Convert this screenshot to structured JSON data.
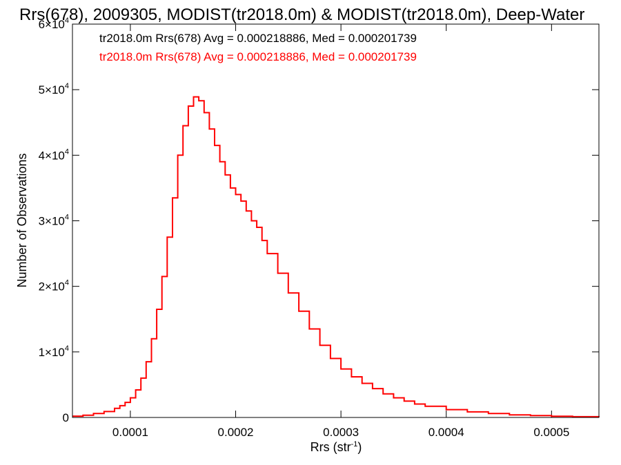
{
  "chart_data": {
    "type": "line",
    "title": "Rrs(678), 2009305, MODIST(tr2018.0m) & MODIST(tr2018.0m), Deep-Water",
    "xlabel": "Rrs (str",
    "xlabel_sup": "-1",
    "xlabel_close": ")",
    "ylabel": "Number of Observations",
    "xlim": [
      4.5e-05,
      0.000545
    ],
    "ylim": [
      0,
      60000
    ],
    "x_ticks": [
      {
        "value": 0.0001,
        "label": "0.0001"
      },
      {
        "value": 0.0002,
        "label": "0.0002"
      },
      {
        "value": 0.0003,
        "label": "0.0003"
      },
      {
        "value": 0.0004,
        "label": "0.0004"
      },
      {
        "value": 0.0005,
        "label": "0.0005"
      }
    ],
    "y_ticks": [
      {
        "value": 0,
        "mant": "0",
        "exp": ""
      },
      {
        "value": 10000,
        "mant": "1×10",
        "exp": "4"
      },
      {
        "value": 20000,
        "mant": "2×10",
        "exp": "4"
      },
      {
        "value": 30000,
        "mant": "3×10",
        "exp": "4"
      },
      {
        "value": 40000,
        "mant": "4×10",
        "exp": "4"
      },
      {
        "value": 50000,
        "mant": "5×10",
        "exp": "4"
      },
      {
        "value": 60000,
        "mant": "6×10",
        "exp": "4"
      }
    ],
    "grid": false,
    "legend_position": "top-left",
    "legend": [
      {
        "text": "tr2018.0m Rrs(678) Avg = 0.000218886, Med = 0.000201739",
        "color": "#000000"
      },
      {
        "text": "tr2018.0m Rrs(678) Avg = 0.000218886, Med = 0.000201739",
        "color": "#ff0000"
      }
    ],
    "series": [
      {
        "color": "#ff0000",
        "style": "step",
        "x": [
          4.5e-05,
          5.5e-05,
          6.5e-05,
          7.5e-05,
          8.5e-05,
          9e-05,
          9.5e-05,
          0.0001,
          0.000105,
          0.00011,
          0.000115,
          0.00012,
          0.000125,
          0.00013,
          0.000135,
          0.00014,
          0.000145,
          0.00015,
          0.000155,
          0.00016,
          0.000165,
          0.00017,
          0.000175,
          0.00018,
          0.000185,
          0.00019,
          0.000195,
          0.0002,
          0.000205,
          0.00021,
          0.000215,
          0.00022,
          0.000225,
          0.00023,
          0.00024,
          0.00025,
          0.00026,
          0.00027,
          0.00028,
          0.00029,
          0.0003,
          0.00031,
          0.00032,
          0.00033,
          0.00034,
          0.00035,
          0.00036,
          0.00037,
          0.00038,
          0.0004,
          0.00042,
          0.00044,
          0.00046,
          0.00048,
          0.0005,
          0.00052,
          0.000545
        ],
        "y": [
          200,
          350,
          600,
          900,
          1400,
          1800,
          2300,
          3000,
          4200,
          6000,
          8500,
          12000,
          16500,
          21500,
          27500,
          33500,
          40000,
          44500,
          47500,
          48900,
          48300,
          46500,
          44000,
          41500,
          39000,
          37000,
          35000,
          34000,
          33000,
          31500,
          30000,
          29000,
          27000,
          25000,
          22000,
          19000,
          16200,
          13500,
          11000,
          9000,
          7400,
          6200,
          5200,
          4400,
          3600,
          3000,
          2500,
          2050,
          1700,
          1200,
          850,
          600,
          400,
          280,
          190,
          120,
          60
        ]
      }
    ]
  }
}
